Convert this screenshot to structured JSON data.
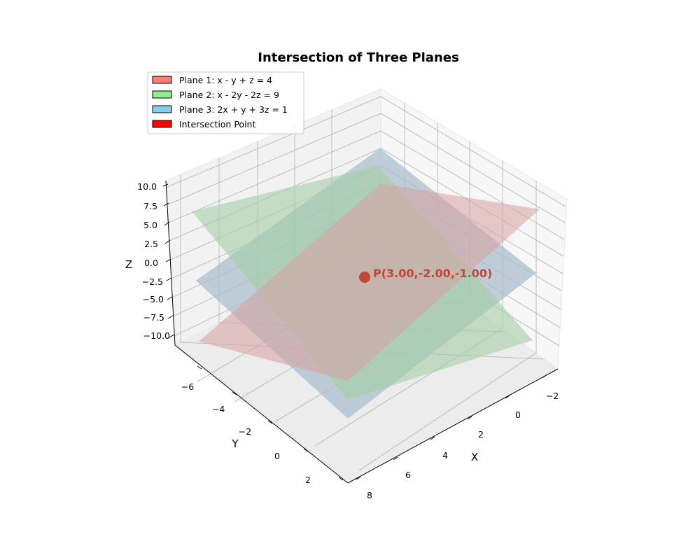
{
  "chart_data": {
    "type": "3d-surface",
    "title": "Intersection of Three Planes",
    "xlabel": "X",
    "ylabel": "Y",
    "zlabel": "Z",
    "xlim": [
      -3,
      8
    ],
    "ylim": [
      -7,
      3
    ],
    "zlim": [
      -12,
      11
    ],
    "x_ticks": [
      "−2",
      "0",
      "2",
      "4",
      "6",
      "8"
    ],
    "y_ticks": [
      "−6",
      "−4",
      "−2",
      "0",
      "2"
    ],
    "z_ticks": [
      "10.0",
      "7.5",
      "5.0",
      "2.5",
      "0.0",
      "−2.5",
      "−5.0",
      "−7.5",
      "−10.0"
    ],
    "grid": true,
    "legend_position": "top-left",
    "series": [
      {
        "name": "Plane 1: x - y + z = 4",
        "equation": "x - y + z = 4",
        "color": "#fa8072",
        "fill_color": "#d9a0a0"
      },
      {
        "name": "Plane 2: x - 2y - 2z = 9",
        "equation": "x - 2y - 2z = 9",
        "color": "#90ee90",
        "fill_color": "#a6cfa6"
      },
      {
        "name": "Plane 3: 2x + y + 3z = 1",
        "equation": "2x + y + 3z = 1",
        "color": "#87ceeb",
        "fill_color": "#a7bccc"
      },
      {
        "name": "Intersection Point",
        "color": "#ff0000"
      }
    ],
    "intersection_point": {
      "x": 3.0,
      "y": -2.0,
      "z": -1.0,
      "label": "P(3.00,-2.00,-1.00)",
      "color": "#c0392b"
    }
  }
}
